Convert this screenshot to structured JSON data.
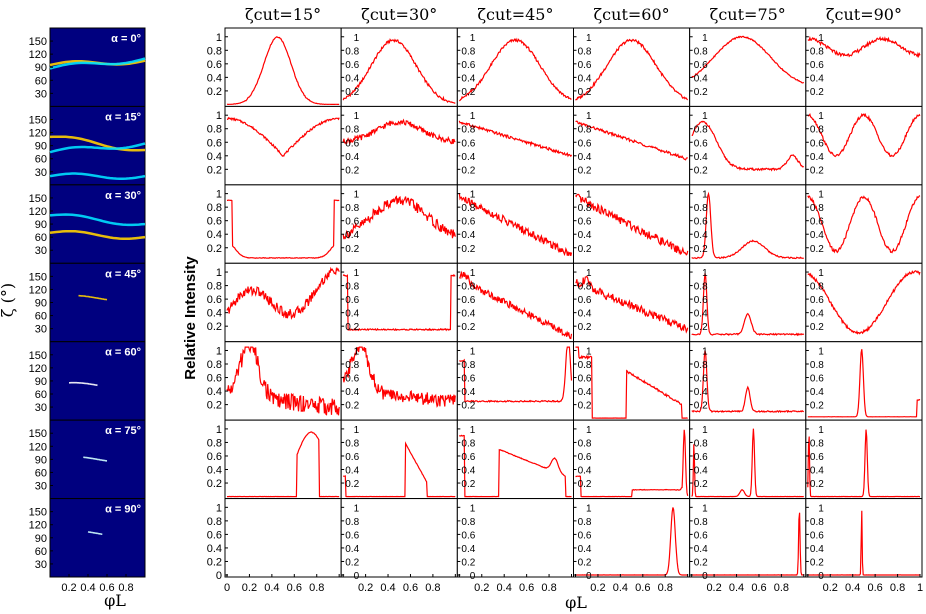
{
  "chart_data": [
    {
      "type": "heatmap",
      "ylabel": "ζ (°)",
      "xlabel": "φL",
      "yticks": [
        30,
        60,
        90,
        120,
        150
      ],
      "xticks": [
        0.2,
        0.4,
        0.6,
        0.8
      ],
      "xlim": [
        0,
        1
      ],
      "ylim": [
        0,
        180
      ],
      "panel_labels": [
        "α = 0°",
        "α = 15°",
        "α = 30°",
        "α = 45°",
        "α = 60°",
        "α = 75°",
        "α = 90°"
      ],
      "colormap": "jet"
    },
    {
      "type": "line",
      "ylabel": "Relative Intensity",
      "xlabel": "φL",
      "column_titles": [
        "ζcut=15°",
        "ζcut=30°",
        "ζcut=45°",
        "ζcut=60°",
        "ζcut=75°",
        "ζcut=90°"
      ],
      "xticks": [
        0,
        0.2,
        0.4,
        0.6,
        0.8,
        1
      ],
      "yticks": [
        0,
        0.2,
        0.4,
        0.6,
        0.8,
        1
      ],
      "xlim": [
        0,
        1
      ],
      "ylim": [
        0,
        1.1
      ],
      "line_color": "#ff0000"
    }
  ],
  "text": {
    "ylabel_right": "Relative Intensity",
    "ylabel_left": "ζ (°)",
    "xlabel_left": "φL",
    "xlabel_right": "φL",
    "col_titles": [
      "ζcut=15°",
      "ζcut=30°",
      "ζcut=45°",
      "ζcut=60°",
      "ζcut=75°",
      "ζcut=90°"
    ],
    "alpha_labels": [
      "α = 0°",
      "α = 15°",
      "α = 30°",
      "α = 45°",
      "α = 60°",
      "α = 75°",
      "α = 90°"
    ]
  }
}
